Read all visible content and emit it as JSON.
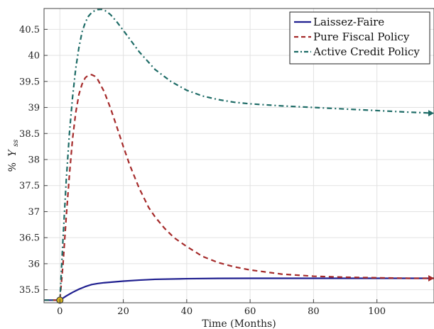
{
  "chart_data": {
    "type": "line",
    "xlabel": "Time (Months)",
    "ylabel": "% Y_ss",
    "ylabel_main": "%",
    "ylabel_var": "Y",
    "ylabel_sub": "ss",
    "xlim": [
      -5,
      118
    ],
    "ylim": [
      35.25,
      40.9
    ],
    "xticks": [
      0,
      20,
      40,
      60,
      80,
      100
    ],
    "yticks": [
      35.5,
      36,
      36.5,
      37,
      37.5,
      38,
      38.5,
      39,
      39.5,
      40,
      40.5
    ],
    "grid": true,
    "legend_position": "top-right",
    "start_point": {
      "x": 0,
      "y": 35.3,
      "color": "#d4b21f"
    },
    "series": [
      {
        "name": "Laissez-Faire",
        "color": "#1f1f8f",
        "style": "solid",
        "x": [
          -5,
          0,
          2,
          4,
          6,
          8,
          10,
          12,
          14,
          16,
          20,
          25,
          30,
          40,
          50,
          60,
          80,
          100,
          118
        ],
        "y": [
          35.3,
          35.3,
          35.38,
          35.45,
          35.51,
          35.56,
          35.6,
          35.62,
          35.635,
          35.645,
          35.665,
          35.685,
          35.7,
          35.712,
          35.718,
          35.72,
          35.72,
          35.72,
          35.72
        ]
      },
      {
        "name": "Pure Fiscal Policy",
        "color": "#a52a2a",
        "style": "dashed",
        "x": [
          -5,
          0,
          1,
          2,
          3,
          4,
          5,
          6,
          7,
          8,
          9,
          10,
          11,
          12,
          14,
          16,
          18,
          20,
          22,
          25,
          28,
          30,
          33,
          36,
          40,
          45,
          50,
          55,
          60,
          70,
          80,
          90,
          100,
          110,
          118
        ],
        "y": [
          35.3,
          35.3,
          36.0,
          36.9,
          37.7,
          38.4,
          38.9,
          39.25,
          39.45,
          39.57,
          39.62,
          39.63,
          39.6,
          39.53,
          39.3,
          38.98,
          38.62,
          38.25,
          37.9,
          37.45,
          37.08,
          36.9,
          36.68,
          36.5,
          36.33,
          36.14,
          36.02,
          35.94,
          35.88,
          35.8,
          35.76,
          35.74,
          35.73,
          35.72,
          35.72
        ]
      },
      {
        "name": "Active Credit Policy",
        "color": "#1d6b66",
        "style": "dashdot",
        "x": [
          -5,
          0,
          1,
          2,
          3,
          4,
          5,
          6,
          7,
          8,
          9,
          10,
          11,
          12,
          13,
          14,
          15,
          16,
          18,
          20,
          25,
          30,
          35,
          40,
          45,
          50,
          55,
          60,
          70,
          80,
          90,
          100,
          110,
          118
        ],
        "y": [
          35.3,
          35.3,
          36.5,
          37.6,
          38.5,
          39.2,
          39.75,
          40.15,
          40.45,
          40.63,
          40.75,
          40.82,
          40.86,
          40.88,
          40.885,
          40.87,
          40.83,
          40.78,
          40.64,
          40.48,
          40.07,
          39.73,
          39.5,
          39.33,
          39.22,
          39.15,
          39.1,
          39.07,
          39.03,
          39.0,
          38.97,
          38.94,
          38.91,
          38.89
        ]
      }
    ]
  }
}
